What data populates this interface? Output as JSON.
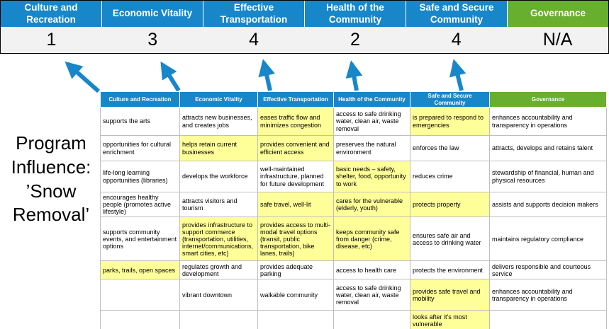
{
  "colors": {
    "blue": "#1787C9",
    "green": "#68AE2F",
    "yellow": "#FFFF99",
    "score_bg": "#F2F2F2"
  },
  "program_label": "Program Influence: ’Snow Removal’",
  "summary": {
    "columns": [
      {
        "label": "Culture and Recreation",
        "score": "1",
        "theme": "blue"
      },
      {
        "label": "Economic Vitality",
        "score": "3",
        "theme": "blue"
      },
      {
        "label": "Effective Transportation",
        "score": "4",
        "theme": "blue"
      },
      {
        "label": "Health of the Community",
        "score": "2",
        "theme": "blue"
      },
      {
        "label": "Safe and Secure Community",
        "score": "4",
        "theme": "blue"
      },
      {
        "label": "Governance",
        "score": "N/A",
        "theme": "green"
      }
    ]
  },
  "matrix": {
    "headers": [
      {
        "label": "Culture and Recreation",
        "theme": "blue"
      },
      {
        "label": "Economic Vitality",
        "theme": "blue"
      },
      {
        "label": "Effective Transportation",
        "theme": "blue"
      },
      {
        "label": "Health of the Community",
        "theme": "blue"
      },
      {
        "label": "Safe and Secure Community",
        "theme": "blue"
      },
      {
        "label": "Governance",
        "theme": "green"
      }
    ],
    "rows": [
      [
        {
          "t": "supports the arts"
        },
        {
          "t": "attracts new businesses, and creates jobs"
        },
        {
          "t": "eases traffic flow and minimizes congestion",
          "h": true
        },
        {
          "t": "access to safe drinking water, clean air, waste removal"
        },
        {
          "t": "is prepared to respond to emergencies",
          "h": true
        },
        {
          "t": "enhances accountability and transparency in operations"
        }
      ],
      [
        {
          "t": "opportunities for cultural enrichment"
        },
        {
          "t": "helps retain current businesses",
          "h": true
        },
        {
          "t": "provides convenient and efficient access",
          "h": true
        },
        {
          "t": "preserves the natural environment"
        },
        {
          "t": "enforces the law"
        },
        {
          "t": "attracts, develops and retains talent"
        }
      ],
      [
        {
          "t": "life-long learning opportunities (libraries)"
        },
        {
          "t": "develops the workforce"
        },
        {
          "t": "well-maintained infrastructure, planned for future development"
        },
        {
          "t": "basic needs – safety, shelter, food, opportunity to work",
          "h": true
        },
        {
          "t": "reduces crime"
        },
        {
          "t": "stewardship of financial, human and physical resources"
        }
      ],
      [
        {
          "t": "encourages healthy people (promotes active lifestyle)"
        },
        {
          "t": "attracts visitors and tourism"
        },
        {
          "t": "safe travel, well-lit",
          "h": true
        },
        {
          "t": "cares for the vulnerable (elderly, youth)",
          "h": true
        },
        {
          "t": "protects property",
          "h": true
        },
        {
          "t": "assists and supports decision makers"
        }
      ],
      [
        {
          "t": "supports community events, and entertainment options"
        },
        {
          "t": "provides infrastructure to support commerce (transportation, utilities, internet/communications, smart cities, etc)",
          "h": true
        },
        {
          "t": "provides access to multi-modal travel options (transit, public transportation, bike lanes, trails)",
          "h": true
        },
        {
          "t": "keeps community safe from danger (crime, disease, etc)",
          "h": true
        },
        {
          "t": "ensures safe air and access to drinking water"
        },
        {
          "t": "maintains regulatory compliance"
        }
      ],
      [
        {
          "t": "parks, trails, open spaces",
          "h": true
        },
        {
          "t": "regulates growth and development"
        },
        {
          "t": "provides adequate parking"
        },
        {
          "t": "access to health care"
        },
        {
          "t": "protects the environment"
        },
        {
          "t": "delivers responsible and courteous service"
        }
      ],
      [
        {
          "t": ""
        },
        {
          "t": "vibrant downtown"
        },
        {
          "t": "walkable community"
        },
        {
          "t": "access to safe drinking water, clean air, waste removal"
        },
        {
          "t": "provides safe travel and mobility",
          "h": true
        },
        {
          "t": "enhances accountability and transparency in operations"
        }
      ],
      [
        {
          "t": ""
        },
        {
          "t": ""
        },
        {
          "t": ""
        },
        {
          "t": ""
        },
        {
          "t": "looks after it's most vulnerable",
          "h": true
        },
        {
          "t": ""
        }
      ]
    ]
  }
}
